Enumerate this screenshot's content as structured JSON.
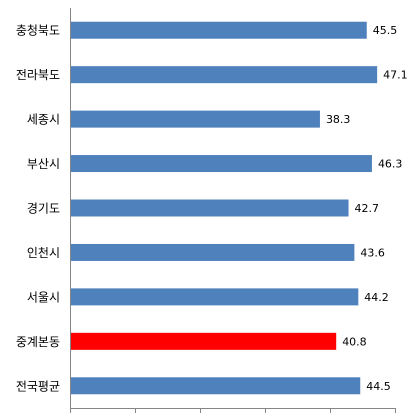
{
  "chart_data": {
    "type": "barh",
    "categories": [
      "충청북도",
      "전라북도",
      "세종시",
      "부산시",
      "경기도",
      "인천시",
      "서울시",
      "중계본동",
      "전국평균"
    ],
    "values": [
      45.5,
      47.1,
      38.3,
      46.3,
      42.7,
      43.6,
      44.2,
      40.8,
      44.5
    ],
    "colors": [
      "#4f81bd",
      "#4f81bd",
      "#4f81bd",
      "#4f81bd",
      "#4f81bd",
      "#4f81bd",
      "#4f81bd",
      "#ff0000",
      "#4f81bd"
    ],
    "xlim": [
      0,
      50
    ],
    "xticks": [
      0,
      10,
      20,
      30,
      40,
      50
    ]
  }
}
